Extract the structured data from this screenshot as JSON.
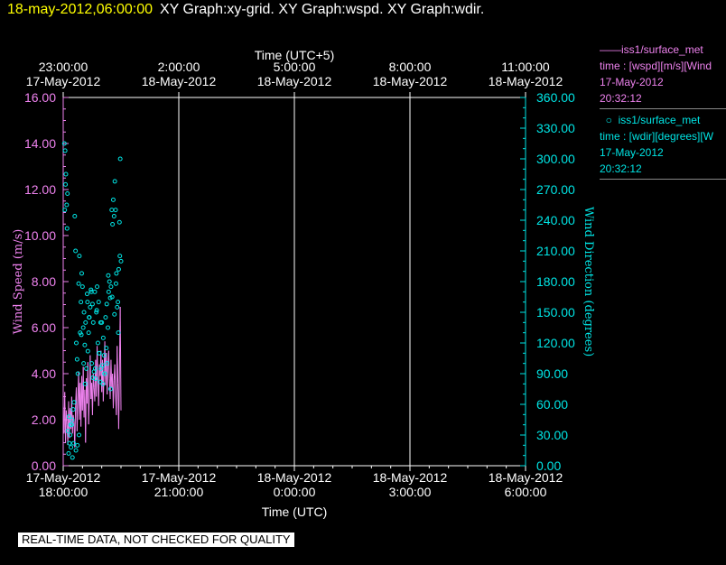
{
  "header": {
    "datetime": "18-may-2012,06:00:00",
    "graphs": "XY Graph:xy-grid.  XY Graph:wspd.  XY Graph:wdir."
  },
  "colors": {
    "wspd": "#ee82ee",
    "wdir": "#00e5e5",
    "grid": "#ffffff",
    "bg": "#000000"
  },
  "legend": [
    {
      "line1": "iss1/surface_met",
      "line2": "time : [wspd][m/s][Wind",
      "line3": "17-May-2012",
      "line4": "20:32:12"
    },
    {
      "line1": "iss1/surface_met",
      "line2": "time : [wdir][degrees][W",
      "line3": "17-May-2012",
      "line4": "20:32:12"
    }
  ],
  "disclaimer": "REAL-TIME DATA, NOT CHECKED FOR QUALITY",
  "chart_data": {
    "type": "line",
    "xlabel_top": "Time (UTC+5)",
    "xlabel_bottom": "Time (UTC)",
    "ylabel_left": "Wind Speed (m/s)",
    "ylabel_right": "Wind Direction (degrees)",
    "xlim": [
      0,
      12
    ],
    "ylim_left": [
      0,
      16
    ],
    "ylim_right": [
      0,
      360
    ],
    "bottom_ticks": [
      {
        "x": 0,
        "date": "17-May-2012",
        "time": "18:00:00"
      },
      {
        "x": 3,
        "date": "17-May-2012",
        "time": "21:00:00"
      },
      {
        "x": 6,
        "date": "18-May-2012",
        "time": "0:00:00"
      },
      {
        "x": 9,
        "date": "18-May-2012",
        "time": "3:00:00"
      },
      {
        "x": 12,
        "date": "18-May-2012",
        "time": "6:00:00"
      }
    ],
    "top_ticks": [
      {
        "x": 0,
        "time": "23:00:00",
        "date": "17-May-2012"
      },
      {
        "x": 3,
        "time": "2:00:00",
        "date": "18-May-2012"
      },
      {
        "x": 6,
        "time": "5:00:00",
        "date": "18-May-2012"
      },
      {
        "x": 9,
        "time": "8:00:00",
        "date": "18-May-2012"
      },
      {
        "x": 12,
        "time": "11:00:00",
        "date": "18-May-2012"
      }
    ],
    "left_ticks": [
      "0.00",
      "2.00",
      "4.00",
      "6.00",
      "8.00",
      "10.00",
      "12.00",
      "14.00",
      "16.00"
    ],
    "right_ticks": [
      "0.00",
      "30.00",
      "60.00",
      "90.00",
      "120.00",
      "150.00",
      "180.00",
      "210.00",
      "240.00",
      "270.00",
      "300.00",
      "330.00",
      "360.00"
    ],
    "series": [
      {
        "name": "iss1/surface_met",
        "axis": "left",
        "style": "line",
        "x": [
          0.0,
          0.02,
          0.04,
          0.06,
          0.08,
          0.1,
          0.12,
          0.14,
          0.16,
          0.18,
          0.2,
          0.22,
          0.24,
          0.26,
          0.28,
          0.3,
          0.32,
          0.34,
          0.36,
          0.38,
          0.4,
          0.42,
          0.44,
          0.46,
          0.48,
          0.5,
          0.52,
          0.54,
          0.56,
          0.58,
          0.6,
          0.62,
          0.64,
          0.66,
          0.68,
          0.7,
          0.72,
          0.74,
          0.76,
          0.78,
          0.8,
          0.82,
          0.84,
          0.86,
          0.88,
          0.9,
          0.92,
          0.94,
          0.96,
          0.98,
          1.0,
          1.02,
          1.04,
          1.06,
          1.08,
          1.1,
          1.12,
          1.14,
          1.16,
          1.18,
          1.2,
          1.22,
          1.24,
          1.26,
          1.28,
          1.3,
          1.32,
          1.34,
          1.36,
          1.38,
          1.4,
          1.42,
          1.44,
          1.46,
          1.48,
          1.5
        ],
        "values": [
          2.6,
          1.4,
          3.2,
          1.0,
          2.4,
          1.8,
          0.9,
          2.8,
          1.2,
          2.5,
          1.6,
          3.0,
          1.4,
          2.2,
          1.9,
          0.8,
          2.6,
          3.4,
          1.5,
          2.9,
          4.1,
          2.0,
          3.6,
          1.7,
          3.9,
          2.4,
          4.3,
          2.1,
          3.3,
          1.0,
          3.8,
          2.7,
          4.5,
          1.8,
          3.1,
          4.8,
          2.9,
          3.6,
          2.2,
          4.0,
          3.4,
          2.8,
          4.6,
          3.0,
          5.2,
          3.7,
          2.6,
          4.4,
          3.9,
          5.0,
          3.2,
          4.6,
          2.8,
          4.2,
          5.4,
          3.5,
          4.9,
          3.1,
          4.3,
          5.0,
          3.8,
          2.9,
          4.6,
          3.4,
          4.0,
          2.5,
          3.7,
          4.4,
          3.0,
          2.2,
          5.2,
          3.6,
          1.6,
          4.1,
          6.9,
          2.4
        ]
      },
      {
        "name": "iss1/surface_met",
        "axis": "right",
        "style": "circle",
        "x": [
          0.03,
          0.05,
          0.07,
          0.04,
          0.06,
          0.09,
          0.11,
          0.1,
          0.14,
          0.16,
          0.18,
          0.2,
          0.22,
          0.24,
          0.26,
          0.28,
          0.3,
          0.32,
          0.34,
          0.36,
          0.38,
          0.4,
          0.42,
          0.44,
          0.46,
          0.48,
          0.5,
          0.52,
          0.54,
          0.56,
          0.58,
          0.6,
          0.62,
          0.64,
          0.66,
          0.68,
          0.7,
          0.72,
          0.74,
          0.76,
          0.78,
          0.8,
          0.82,
          0.84,
          0.86,
          0.88,
          0.9,
          0.92,
          0.94,
          0.96,
          0.98,
          1.0,
          1.02,
          1.04,
          1.06,
          1.08,
          1.1,
          1.12,
          1.14,
          1.16,
          1.18,
          1.2,
          1.22,
          1.24,
          1.26,
          1.28,
          1.3,
          1.32,
          1.34,
          1.36,
          1.38,
          1.4,
          1.42,
          1.44,
          1.46,
          1.48,
          1.5,
          0.12,
          0.15,
          0.19,
          0.23,
          0.27,
          0.33,
          0.37,
          0.41,
          0.47,
          0.53,
          0.57,
          0.63,
          0.67,
          0.73,
          0.77,
          0.83,
          0.87,
          0.93,
          0.97,
          1.03,
          1.07,
          1.13,
          1.17,
          1.23,
          1.27,
          1.33,
          1.37,
          1.43,
          1.47
        ],
        "values": [
          315,
          308,
          285,
          250,
          275,
          255,
          266,
          232,
          12,
          22,
          30,
          18,
          40,
          8,
          55,
          62,
          244,
          210,
          120,
          104,
          90,
          178,
          205,
          130,
          160,
          188,
          175,
          135,
          150,
          118,
          140,
          95,
          168,
          112,
          130,
          145,
          155,
          172,
          100,
          158,
          140,
          92,
          170,
          85,
          150,
          175,
          120,
          160,
          110,
          82,
          95,
          140,
          98,
          125,
          108,
          90,
          145,
          115,
          100,
          135,
          170,
          180,
          164,
          175,
          250,
          236,
          260,
          244,
          278,
          250,
          188,
          155,
          160,
          192,
          238,
          300,
          200,
          34,
          48,
          40,
          45,
          22,
          15,
          20,
          30,
          128,
          100,
          80,
          160,
          145,
          170,
          86,
          95,
          152,
          110,
          140,
          80,
          90,
          158,
          186,
          75,
          165,
          148,
          178,
          130,
          205
        ]
      }
    ]
  }
}
